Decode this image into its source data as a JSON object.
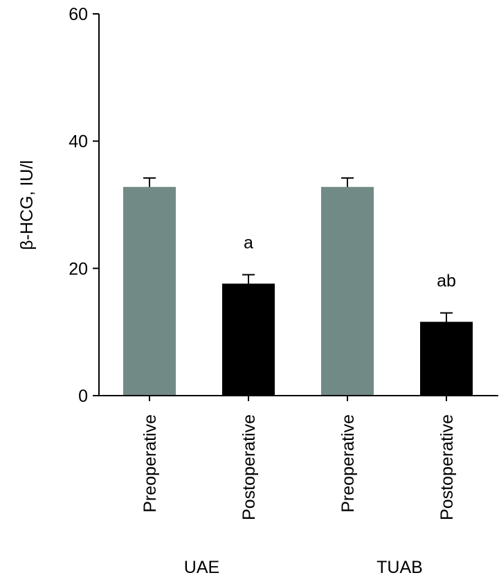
{
  "chart_data": {
    "type": "bar",
    "title": "",
    "ylabel": "β-HCG, IU/l",
    "xlabel": "",
    "ylim": [
      0,
      60
    ],
    "yticks": [
      0,
      20,
      40,
      60
    ],
    "grid": false,
    "categories": [
      "Preoperative",
      "Postoperative",
      "Preoperative",
      "Postoperative"
    ],
    "groups": [
      {
        "label": "UAE",
        "categories": [
          0,
          1
        ]
      },
      {
        "label": "TUAB",
        "categories": [
          2,
          3
        ]
      }
    ],
    "values": [
      32.8,
      17.6,
      32.8,
      11.6
    ],
    "errors": [
      1.4,
      1.4,
      1.4,
      1.4
    ],
    "annotations": [
      "",
      "a",
      "",
      "ab"
    ],
    "colors": [
      "#728a86",
      "#000000",
      "#728a86",
      "#000000"
    ]
  }
}
